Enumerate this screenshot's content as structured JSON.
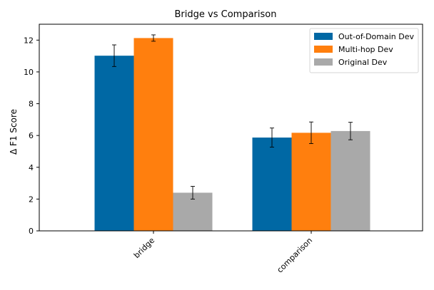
{
  "chart_data": {
    "type": "bar",
    "title": "Bridge vs Comparison",
    "xlabel": "",
    "ylabel": "Δ F1 Score",
    "categories": [
      "bridge",
      "comparison"
    ],
    "ylim": [
      0,
      13
    ],
    "yticks": [
      0,
      2,
      4,
      6,
      8,
      10,
      12
    ],
    "grid": false,
    "legend_position": "top-right",
    "series": [
      {
        "name": "Out-of-Domain Dev",
        "color": "#0068a4",
        "values": [
          11.02,
          5.87
        ],
        "errors": [
          0.68,
          0.6
        ]
      },
      {
        "name": "Multi-hop Dev",
        "color": "#ff7f0e",
        "values": [
          12.13,
          6.17
        ],
        "errors": [
          0.2,
          0.68
        ]
      },
      {
        "name": "Original Dev",
        "color": "#a9a9a9",
        "values": [
          2.4,
          6.28
        ],
        "errors": [
          0.4,
          0.55
        ]
      }
    ]
  }
}
